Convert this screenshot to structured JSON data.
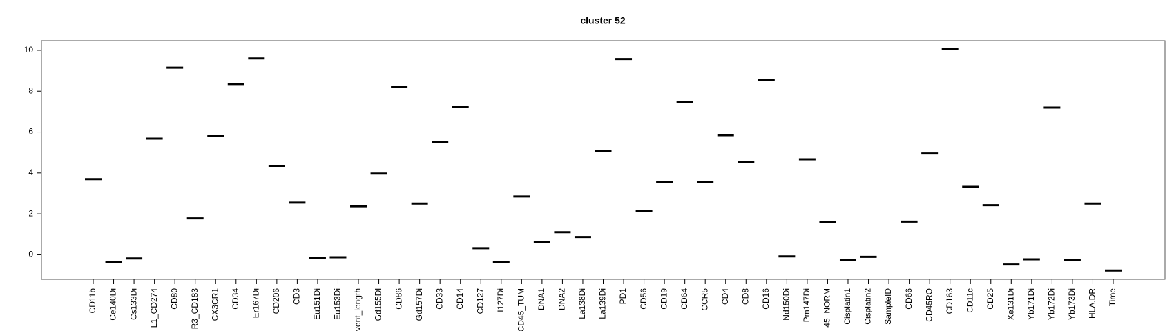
{
  "chart_data": {
    "type": "segment",
    "title": "cluster 52",
    "categories": [
      "CD11b",
      "Ce140Di",
      "Cs133Di",
      "L1_CD274",
      "CD80",
      "R3_CD183",
      "CX3CR1",
      "CD34",
      "Er167Di",
      "CD206",
      "CD3",
      "Eu151Di",
      "Eu153Di",
      "vent_length",
      "Gd155Di",
      "CD86",
      "Gd157Di",
      "CD33",
      "CD14",
      "CD127",
      "I127Di",
      "CD45_TUM",
      "DNA1",
      "DNA2",
      "La138Di",
      "La139Di",
      "PD1",
      "CD56",
      "CD19",
      "CD64",
      "CCR5",
      "CD4",
      "CD8",
      "CD16",
      "Nd150Di",
      "Pm147Di",
      "45_NORM",
      "Cisplatin1",
      "Cisplatin2",
      "SampleID",
      "CD66",
      "CD45RO",
      "CD163",
      "CD11c",
      "CD25",
      "Xe131Di",
      "Yb171Di",
      "Yb172Di",
      "Yb173Di",
      "HLA.DR",
      "Time"
    ],
    "values": [
      3.7,
      -0.37,
      -0.18,
      5.68,
      9.15,
      1.78,
      5.8,
      8.35,
      9.6,
      4.35,
      2.55,
      -0.15,
      -0.12,
      2.37,
      3.97,
      8.22,
      2.5,
      5.52,
      7.23,
      0.32,
      -0.37,
      2.85,
      0.62,
      1.1,
      0.87,
      5.08,
      9.57,
      2.15,
      3.55,
      7.48,
      3.57,
      5.85,
      4.55,
      8.55,
      -0.08,
      4.67,
      1.6,
      -0.25,
      -0.1,
      null,
      1.62,
      4.95,
      10.05,
      3.32,
      2.42,
      -0.48,
      -0.22,
      7.2,
      -0.25,
      2.5,
      -0.77
    ],
    "color": "#000000",
    "ylim": [
      -1.2,
      10.47
    ],
    "yticks": [
      0,
      2,
      4,
      6,
      8,
      10
    ]
  }
}
